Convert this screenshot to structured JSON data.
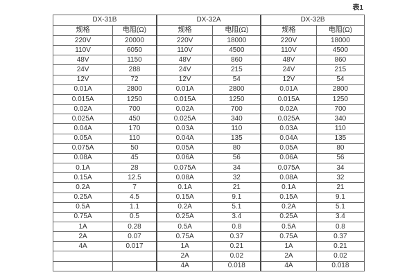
{
  "page": {
    "caption": "表1"
  },
  "table": {
    "groups": [
      {
        "name": "DX-31B",
        "col_headers": [
          "规格",
          "电阻(Ω)"
        ]
      },
      {
        "name": "DX-32A",
        "col_headers": [
          "规格",
          "电阻(Ω)"
        ]
      },
      {
        "name": "DX-32B",
        "col_headers": [
          "规格",
          "电阻(Ω)"
        ]
      }
    ],
    "rows": [
      [
        [
          "220V",
          "20000"
        ],
        [
          "220V",
          "18000"
        ],
        [
          "220V",
          "18000"
        ]
      ],
      [
        [
          "110V",
          "6050"
        ],
        [
          "110V",
          "4500"
        ],
        [
          "110V",
          "4500"
        ]
      ],
      [
        [
          "48V",
          "1150"
        ],
        [
          "48V",
          "860"
        ],
        [
          "48V",
          "860"
        ]
      ],
      [
        [
          "24V",
          "288"
        ],
        [
          "24V",
          "215"
        ],
        [
          "24V",
          "215"
        ]
      ],
      [
        [
          "12V",
          "72"
        ],
        [
          "12V",
          "54"
        ],
        [
          "12V",
          "54"
        ]
      ],
      [
        [
          "0.01A",
          "2800"
        ],
        [
          "0.01A",
          "2800"
        ],
        [
          "0.01A",
          "2800"
        ]
      ],
      [
        [
          "0.015A",
          "1250"
        ],
        [
          "0.015A",
          "1250"
        ],
        [
          "0.015A",
          "1250"
        ]
      ],
      [
        [
          "0.02A",
          "700"
        ],
        [
          "0.02A",
          "700"
        ],
        [
          "0.02A",
          "700"
        ]
      ],
      [
        [
          "0.025A",
          "450"
        ],
        [
          "0.025A",
          "340"
        ],
        [
          "0.025A",
          "340"
        ]
      ],
      [
        [
          "0.04A",
          "170"
        ],
        [
          "0.03A",
          "110"
        ],
        [
          "0.03A",
          "110"
        ]
      ],
      [
        [
          "0.05A",
          "110"
        ],
        [
          "0.04A",
          "135"
        ],
        [
          "0.04A",
          "135"
        ]
      ],
      [
        [
          "0.075A",
          "50"
        ],
        [
          "0.05A",
          "80"
        ],
        [
          "0.05A",
          "80"
        ]
      ],
      [
        [
          "0.08A",
          "45"
        ],
        [
          "0.06A",
          "56"
        ],
        [
          "0.06A",
          "56"
        ]
      ],
      [
        [
          "0.1A",
          "28"
        ],
        [
          "0.075A",
          "34"
        ],
        [
          "0.075A",
          "34"
        ]
      ],
      [
        [
          "0.15A",
          "12.5"
        ],
        [
          "0.08A",
          "32"
        ],
        [
          "0.08A",
          "32"
        ]
      ],
      [
        [
          "0.2A",
          "7"
        ],
        [
          "0.1A",
          "21"
        ],
        [
          "0.1A",
          "21"
        ]
      ],
      [
        [
          "0.25A",
          "4.5"
        ],
        [
          "0.15A",
          "9.1"
        ],
        [
          "0.15A",
          "9.1"
        ]
      ],
      [
        [
          "0.5A",
          "1.1"
        ],
        [
          "0.2A",
          "5.1"
        ],
        [
          "0.2A",
          "5.1"
        ]
      ],
      [
        [
          "0.75A",
          "0.5"
        ],
        [
          "0.25A",
          "3.4"
        ],
        [
          "0.25A",
          "3.4"
        ]
      ],
      [
        [
          "1A",
          "0.28"
        ],
        [
          "0.5A",
          "0.8"
        ],
        [
          "0.5A",
          "0.8"
        ]
      ],
      [
        [
          "2A",
          "0.07"
        ],
        [
          "0.75A",
          "0.37"
        ],
        [
          "0.75A",
          "0.37"
        ]
      ],
      [
        [
          "4A",
          "0.017"
        ],
        [
          "1A",
          "0.21"
        ],
        [
          "1A",
          "0.21"
        ]
      ],
      [
        [
          "",
          ""
        ],
        [
          "2A",
          "0.02"
        ],
        [
          "2A",
          "0.02"
        ]
      ],
      [
        [
          "",
          ""
        ],
        [
          "4A",
          "0.018"
        ],
        [
          "4A",
          "0.018"
        ]
      ]
    ]
  }
}
